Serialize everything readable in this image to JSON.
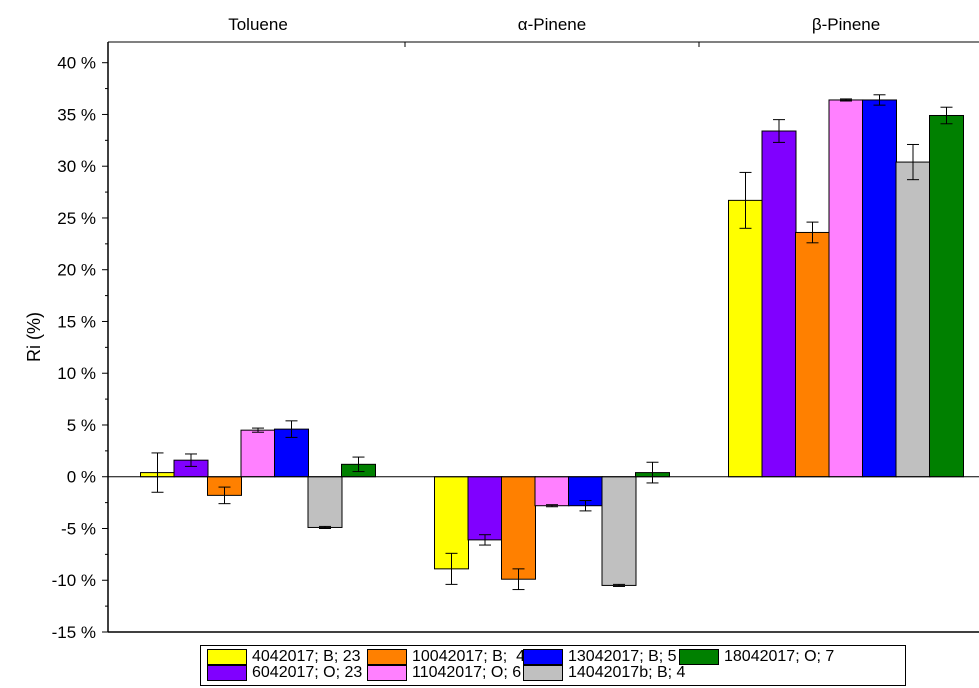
{
  "chart_data": {
    "type": "bar",
    "ylabel": "Ri (%)",
    "ylim": [
      -15,
      42
    ],
    "yticks": [
      -15,
      -10,
      -5,
      0,
      5,
      10,
      15,
      20,
      25,
      30,
      35,
      40
    ],
    "ytick_labels": [
      "-15 %",
      "-10 %",
      "-5 %",
      "0 %",
      "5 %",
      "10 %",
      "15 %",
      "20 %",
      "25 %",
      "30 %",
      "35 %",
      "40 %"
    ],
    "categories": [
      "Toluene",
      "α-Pinene",
      "β-Pinene"
    ],
    "grid": false,
    "legend_position": "bottom",
    "series": [
      {
        "name": "4042017; B; 23",
        "color": "#ffff00",
        "values": [
          0.4,
          -8.9,
          26.7
        ],
        "errors": [
          1.9,
          1.5,
          2.7
        ]
      },
      {
        "name": "6042017; O; 23",
        "color": "#8000ff",
        "values": [
          1.6,
          -6.1,
          33.4
        ],
        "errors": [
          0.6,
          0.5,
          1.1
        ]
      },
      {
        "name": "10042017; B;  4",
        "color": "#ff8000",
        "values": [
          -1.8,
          -9.9,
          23.6
        ],
        "errors": [
          0.8,
          1.0,
          1.0
        ]
      },
      {
        "name": "11042017; O; 6",
        "color": "#ff80ff",
        "values": [
          4.5,
          -2.8,
          36.4
        ],
        "errors": [
          0.2,
          0.1,
          0.1
        ]
      },
      {
        "name": "13042017; B; 5",
        "color": "#0000ff",
        "values": [
          4.6,
          -2.8,
          36.4
        ],
        "errors": [
          0.8,
          0.5,
          0.5
        ]
      },
      {
        "name": "14042017b; B; 4",
        "color": "#c0c0c0",
        "values": [
          -4.9,
          -10.5,
          30.4
        ],
        "errors": [
          0.1,
          0.1,
          1.7
        ]
      },
      {
        "name": "18042017; O; 7",
        "color": "#008000",
        "values": [
          1.2,
          0.4,
          34.9
        ],
        "errors": [
          0.7,
          1.0,
          0.8
        ]
      }
    ]
  }
}
